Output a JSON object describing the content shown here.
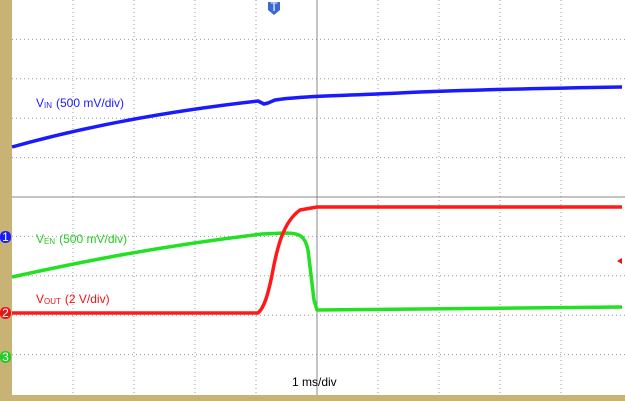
{
  "traces": [
    {
      "symbol": "V",
      "subscript": "IN",
      "scale": "(500 mV/div)"
    },
    {
      "symbol": "V",
      "subscript": "EN",
      "scale": "(500 mV/div)"
    },
    {
      "symbol": "V",
      "subscript": "OUT",
      "scale": "(2 V/div)"
    }
  ],
  "timebase": "1 ms/div",
  "channel_markers": [
    "1",
    "2",
    "3"
  ],
  "trigger_marker": "T"
}
